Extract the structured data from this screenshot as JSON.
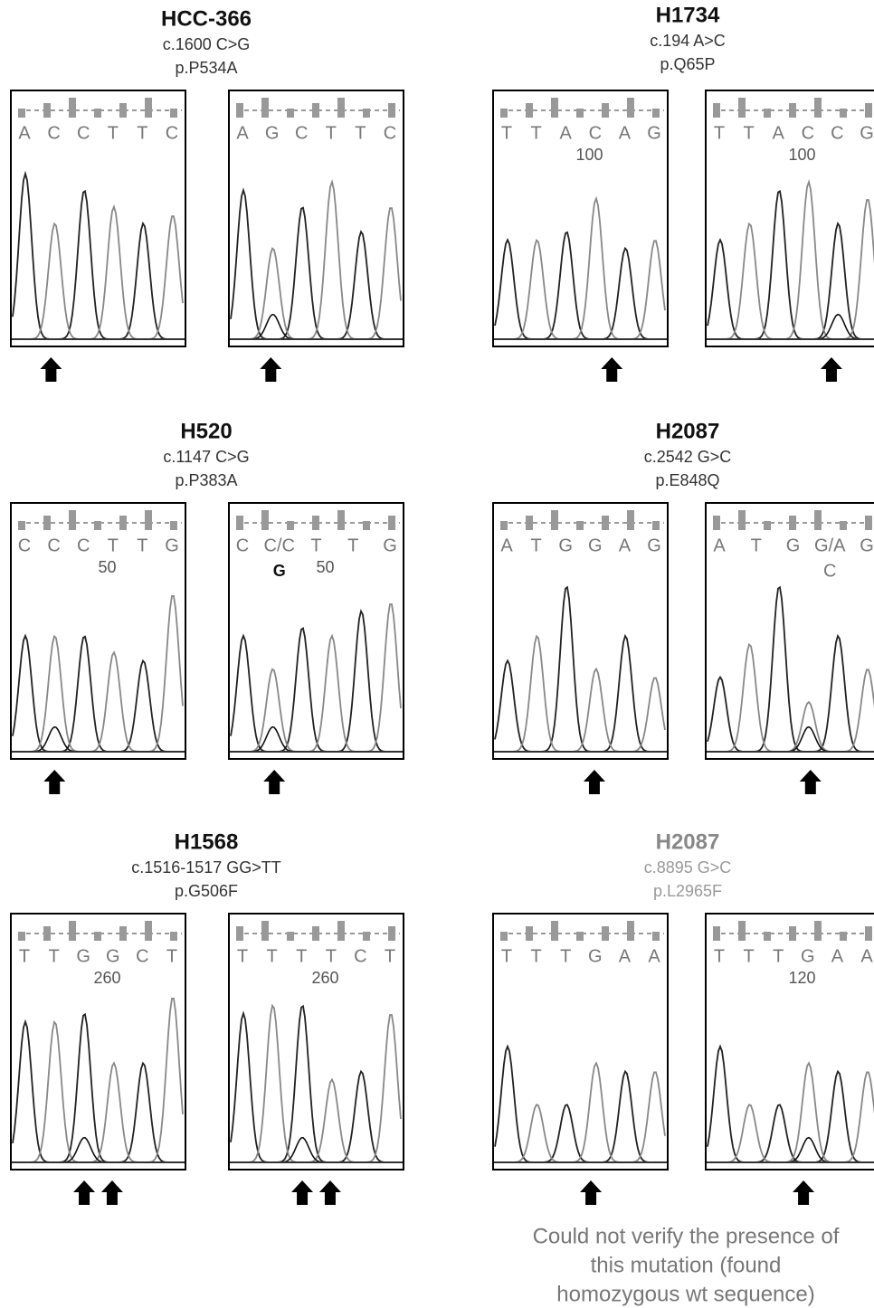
{
  "panels": [
    {
      "title": "HCC-366",
      "cdna": "c.1600 C>G",
      "protein": "p.P534A",
      "traces": [
        {
          "bases": [
            "A",
            "C",
            "C",
            "T",
            "T",
            "C"
          ]
        },
        {
          "bases": [
            "A",
            "G",
            "C",
            "T",
            "T",
            "C"
          ]
        }
      ]
    },
    {
      "title": "H1734",
      "cdna": "c.194 A>C",
      "protein": "p.Q65P",
      "traces": [
        {
          "bases": [
            "T",
            "T",
            "A",
            "C",
            "A",
            "G"
          ],
          "position": "100"
        },
        {
          "bases": [
            "T",
            "T",
            "A",
            "C",
            "C",
            "G"
          ],
          "position": "100"
        }
      ]
    },
    {
      "title": "H520",
      "cdna": "c.1147 C>G",
      "protein": "p.P383A",
      "traces": [
        {
          "bases": [
            "C",
            "C",
            "C",
            "T",
            "T",
            "G"
          ],
          "position": "50"
        },
        {
          "bases": [
            "C",
            "C/C",
            "T",
            "T",
            "G"
          ],
          "secondary": "G",
          "position": "50"
        }
      ]
    },
    {
      "title": "H2087",
      "cdna": "c.2542 G>C",
      "protein": "p.E848Q",
      "traces": [
        {
          "bases": [
            "A",
            "T",
            "G",
            "G",
            "A",
            "G"
          ]
        },
        {
          "bases": [
            "A",
            "T",
            "G",
            "G/A",
            "G"
          ],
          "secondary": "C"
        }
      ]
    },
    {
      "title": "H1568",
      "cdna": "c.1516-1517 GG>TT",
      "protein": "p.G506F",
      "traces": [
        {
          "bases": [
            "T",
            "T",
            "G",
            "G",
            "C",
            "T"
          ],
          "position": "260"
        },
        {
          "bases": [
            "T",
            "T",
            "T",
            "T",
            "C",
            "T"
          ],
          "position": "260"
        }
      ]
    },
    {
      "title": "H2087",
      "cdna": "c.8895 G>C",
      "protein": "p.L2965F",
      "traces": [
        {
          "bases": [
            "T",
            "T",
            "T",
            "G",
            "A",
            "A"
          ]
        },
        {
          "bases": [
            "T",
            "T",
            "T",
            "G",
            "A",
            "A"
          ],
          "position": "120"
        }
      ]
    }
  ],
  "note": [
    "Could not verify the presence of",
    "this mutation (found",
    "homozygous wt sequence)"
  ]
}
